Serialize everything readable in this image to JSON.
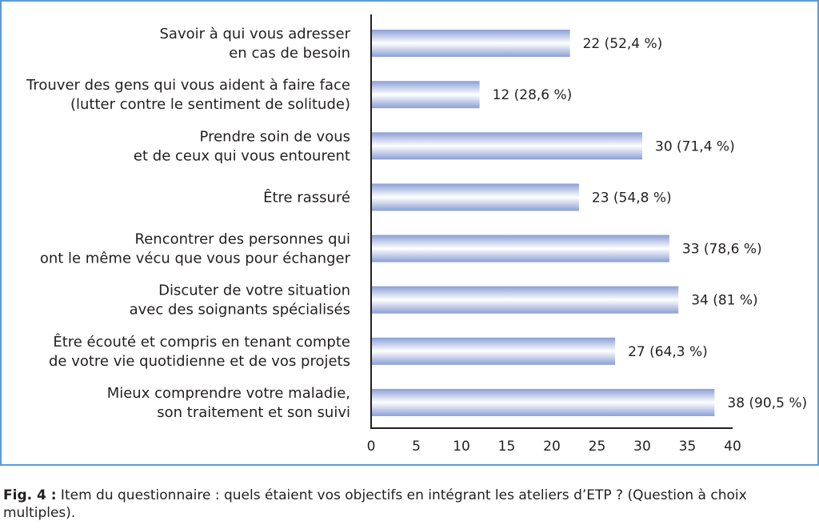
{
  "chart_data": {
    "type": "bar",
    "orientation": "horizontal",
    "categories": [
      [
        "Savoir à qui vous adresser",
        "en cas de besoin"
      ],
      [
        "Trouver des gens qui vous aident à faire face",
        "(lutter contre le sentiment de solitude)"
      ],
      [
        "Prendre soin de vous",
        "et de ceux qui vous entourent"
      ],
      [
        "Être rassuré"
      ],
      [
        "Rencontrer des personnes qui",
        "ont le même vécu que vous pour échanger"
      ],
      [
        "Discuter de votre situation",
        "avec des soignants spécialisés"
      ],
      [
        "Être écouté et compris en tenant compte",
        "de votre vie quotidienne et de vos projets"
      ],
      [
        "Mieux comprendre votre maladie,",
        "son traitement et son suivi"
      ]
    ],
    "values": [
      22,
      12,
      30,
      23,
      33,
      34,
      27,
      38
    ],
    "data_labels": [
      "22 (52,4 %)",
      "12 (28,6 %)",
      "30 (71,4 %)",
      "23 (54,8 %)",
      "33 (78,6 %)",
      "34 (81 %)",
      "27 (64,3 %)",
      "38 (90,5 %)"
    ],
    "xlim": [
      0,
      40
    ],
    "xticks": [
      "0",
      "5",
      "10",
      "15",
      "20",
      "25",
      "30",
      "35",
      "40"
    ],
    "grid": false,
    "colors": {
      "bar_edge": "#8a9fd6",
      "bar_center": "#ffffff",
      "frame": "#5b9bd5",
      "axis": "#231f20"
    }
  },
  "caption": {
    "label": "Fig. 4 :",
    "text": " Item du questionnaire : quels étaient vos objectifs en intégrant les ateliers d’ETP ? (Question à choix multiples)."
  }
}
